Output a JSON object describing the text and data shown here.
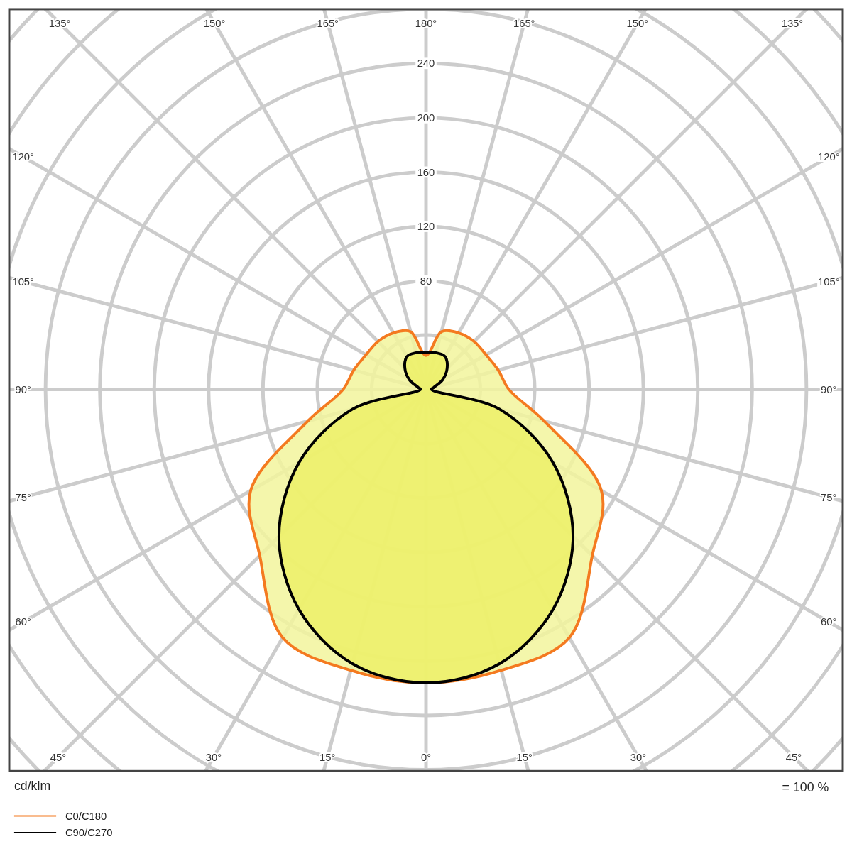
{
  "chart_data": {
    "type": "radar",
    "ylabel": "cd/klm",
    "annotations": [
      "= 100 %"
    ],
    "categories": [
      "180°",
      "165°",
      "150°",
      "135°",
      "120°",
      "105°",
      "90°",
      "75°",
      "60°",
      "45°",
      "30°",
      "15°",
      "0°",
      "15°",
      "30°",
      "45°",
      "60°",
      "75°",
      "90°",
      "105°",
      "120°",
      "135°",
      "150°",
      "165°"
    ],
    "ylim": [
      0,
      400
    ],
    "yticks": [
      80,
      120,
      160,
      200,
      240
    ],
    "series": [
      {
        "name": "C0/C180",
        "color": "#f47a20",
        "values": [
          25,
          44,
          48,
          50,
          51,
          55,
          61,
          90,
          149,
          173,
          211,
          214,
          216,
          214,
          211,
          173,
          149,
          90,
          61,
          55,
          51,
          50,
          48,
          44
        ]
      },
      {
        "name": "C90/C270",
        "color": "#000000",
        "values": [
          27,
          28,
          28,
          22,
          14,
          6,
          4,
          56,
          108,
          153,
          187,
          209,
          216,
          209,
          187,
          153,
          108,
          56,
          4,
          6,
          14,
          22,
          28,
          28
        ]
      }
    ],
    "grid": true,
    "legend": "bottom left"
  }
}
